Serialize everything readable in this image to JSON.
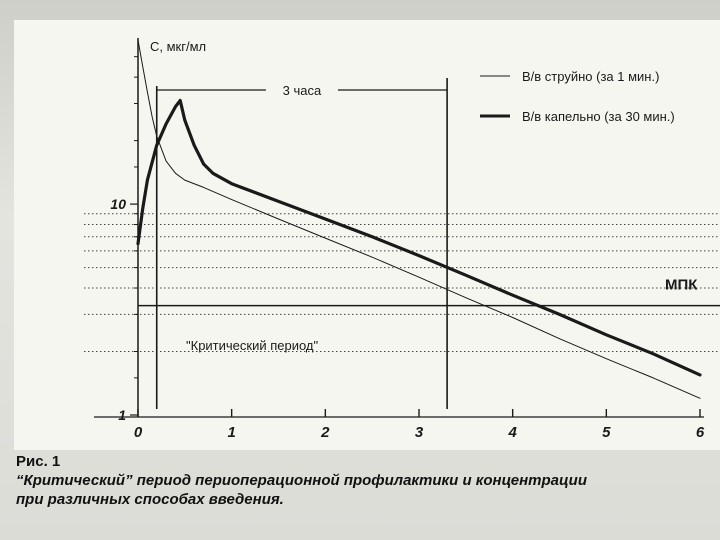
{
  "chart_data": {
    "type": "line",
    "ylabel": "С, мкг/мл",
    "x_ticks": [
      "0",
      "1",
      "2",
      "3",
      "4",
      "5",
      "6"
    ],
    "y_ticks": [
      "1",
      "10"
    ],
    "xlim": [
      0,
      6
    ],
    "y_scale": "log",
    "ylim": [
      1,
      60
    ],
    "grid": "dotted horizontal",
    "legend_position": "top-right",
    "series": [
      {
        "name": "В/в струйно (за 1 мин.)",
        "style": "thin",
        "x": [
          0,
          0.05,
          0.1,
          0.15,
          0.2,
          0.3,
          0.4,
          0.5,
          0.7,
          1.0,
          1.5,
          2.0,
          2.5,
          3.0,
          3.5,
          4.0,
          4.5,
          5.0,
          5.5,
          6.0
        ],
        "y": [
          60,
          45,
          34,
          26,
          21,
          16,
          14,
          13,
          12,
          10.5,
          8.5,
          6.9,
          5.6,
          4.5,
          3.6,
          2.9,
          2.3,
          1.85,
          1.5,
          1.2
        ]
      },
      {
        "name": "В/в капельно (за 30 мин.)",
        "style": "thick",
        "x": [
          0,
          0.05,
          0.1,
          0.2,
          0.3,
          0.4,
          0.45,
          0.5,
          0.6,
          0.7,
          0.8,
          1.0,
          1.5,
          2.0,
          2.5,
          3.0,
          3.5,
          4.0,
          4.5,
          5.0,
          5.5,
          6.0
        ],
        "y": [
          6.5,
          9.5,
          13,
          19,
          24,
          29,
          31,
          25,
          19,
          15.5,
          14,
          12.5,
          10.3,
          8.5,
          7.0,
          5.7,
          4.6,
          3.7,
          3.0,
          2.4,
          1.95,
          1.55
        ]
      }
    ],
    "annotations": {
      "mic_label": "МПК",
      "mic_value": 3.6,
      "interval_label": "3 часа",
      "interval_start": 0.2,
      "interval_end": 3.3,
      "critical_label": "\"Критический период\""
    }
  },
  "caption": {
    "line1": "Рис. 1",
    "line2": "“Критический” период периоперационной профилактики и концентрации",
    "line3": "при различных способах введения."
  },
  "colors": {
    "ink": "#1a1a1a",
    "paper": "#f6f6f1"
  }
}
